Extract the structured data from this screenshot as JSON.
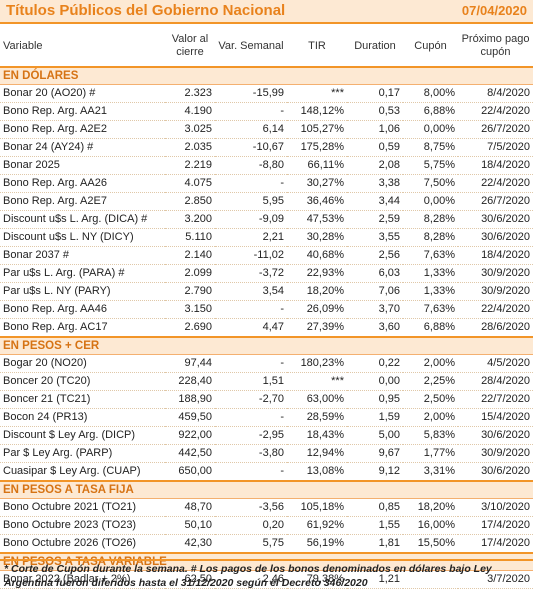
{
  "title": "Títulos Públicos del Gobierno Nacional",
  "date": "07/04/2020",
  "headers": {
    "variable": "Variable",
    "valor": "Valor al cierre",
    "var": "Var. Semanal",
    "tir": "TIR",
    "duration": "Duration",
    "cupon": "Cupón",
    "proximo": "Próximo pago cupón"
  },
  "sections": [
    {
      "title": "EN DÓLARES",
      "rows": [
        [
          "Bonar 20 (AO20) #",
          "2.323",
          "-15,99",
          "***",
          "0,17",
          "8,00%",
          "8/4/2020"
        ],
        [
          "Bono Rep. Arg. AA21",
          "4.190",
          "-",
          "148,12%",
          "0,53",
          "6,88%",
          "22/4/2020"
        ],
        [
          "Bono Rep. Arg. A2E2",
          "3.025",
          "6,14",
          "105,27%",
          "1,06",
          "0,00%",
          "26/7/2020"
        ],
        [
          "Bonar 24 (AY24) #",
          "2.035",
          "-10,67",
          "175,28%",
          "0,59",
          "8,75%",
          "7/5/2020"
        ],
        [
          "Bonar 2025",
          "2.219",
          "-8,80",
          "66,11%",
          "2,08",
          "5,75%",
          "18/4/2020"
        ],
        [
          "Bono Rep. Arg. AA26",
          "4.075",
          "-",
          "30,27%",
          "3,38",
          "7,50%",
          "22/4/2020"
        ],
        [
          "Bono Rep. Arg. A2E7",
          "2.850",
          "5,95",
          "36,46%",
          "3,44",
          "0,00%",
          "26/7/2020"
        ],
        [
          "Discount u$s L. Arg. (DICA) #",
          "3.200",
          "-9,09",
          "47,53%",
          "2,59",
          "8,28%",
          "30/6/2020"
        ],
        [
          "Discount u$s L. NY (DICY)",
          "5.110",
          "2,21",
          "30,28%",
          "3,55",
          "8,28%",
          "30/6/2020"
        ],
        [
          "Bonar 2037 #",
          "2.140",
          "-11,02",
          "40,68%",
          "2,56",
          "7,63%",
          "18/4/2020"
        ],
        [
          "Par u$s L. Arg. (PARA) #",
          "2.099",
          "-3,72",
          "22,93%",
          "6,03",
          "1,33%",
          "30/9/2020"
        ],
        [
          "Par u$s L. NY (PARY)",
          "2.790",
          "3,54",
          "18,20%",
          "7,06",
          "1,33%",
          "30/9/2020"
        ],
        [
          "Bono Rep. Arg. AA46",
          "3.150",
          "-",
          "26,09%",
          "3,70",
          "7,63%",
          "22/4/2020"
        ],
        [
          "Bono Rep. Arg. AC17",
          "2.690",
          "4,47",
          "27,39%",
          "3,60",
          "6,88%",
          "28/6/2020"
        ]
      ]
    },
    {
      "title": "EN PESOS + CER",
      "rows": [
        [
          "Bogar 20 (NO20)",
          "97,44",
          "-",
          "180,23%",
          "0,22",
          "2,00%",
          "4/5/2020"
        ],
        [
          "Boncer 20 (TC20)",
          "228,40",
          "1,51",
          "***",
          "0,00",
          "2,25%",
          "28/4/2020"
        ],
        [
          "Boncer 21 (TC21)",
          "188,90",
          "-2,70",
          "63,00%",
          "0,95",
          "2,50%",
          "22/7/2020"
        ],
        [
          "Bocon 24 (PR13)",
          "459,50",
          "-",
          "28,59%",
          "1,59",
          "2,00%",
          "15/4/2020"
        ],
        [
          "Discount $ Ley Arg. (DICP)",
          "922,00",
          "-2,95",
          "18,43%",
          "5,00",
          "5,83%",
          "30/6/2020"
        ],
        [
          "Par $ Ley Arg. (PARP)",
          "442,50",
          "-3,80",
          "12,94%",
          "9,67",
          "1,77%",
          "30/9/2020"
        ],
        [
          "Cuasipar $ Ley Arg. (CUAP)",
          "650,00",
          "-",
          "13,08%",
          "9,12",
          "3,31%",
          "30/6/2020"
        ]
      ]
    },
    {
      "title": "EN PESOS A TASA FIJA",
      "rows": [
        [
          "Bono Octubre 2021 (TO21)",
          "48,70",
          "-3,56",
          "105,18%",
          "0,85",
          "18,20%",
          "3/10/2020"
        ],
        [
          "Bono Octubre 2023 (TO23)",
          "50,10",
          "0,20",
          "61,92%",
          "1,55",
          "16,00%",
          "17/4/2020"
        ],
        [
          "Bono Octubre 2026 (TO26)",
          "42,30",
          "5,75",
          "56,19%",
          "1,81",
          "15,50%",
          "17/4/2020"
        ]
      ]
    },
    {
      "title": "EN PESOS A TASA VARIABLE",
      "rows": [
        [
          "Bonar 2022 (Badlar + 2%)",
          "62,50",
          "2,46",
          "79,38%",
          "1,21",
          "",
          "3/7/2020"
        ]
      ]
    }
  ],
  "footnote": "* Corte de Cupón durante la semana. # Los pagos de los bonos denominados en dólares bajo Ley Argentina fueron diferidos hasta el 31/12/2020 según el Decreto 346/2020"
}
